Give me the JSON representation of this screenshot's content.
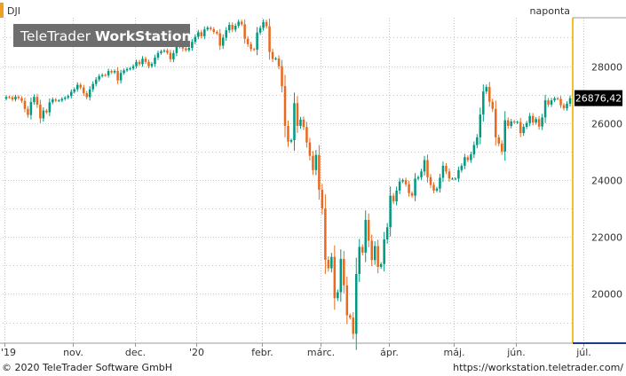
{
  "symbol": "DJI",
  "period_label": "naponta",
  "watermark": {
    "brand": "TeleTrader ",
    "product": "WorkStation"
  },
  "last_price_label": "26876,42",
  "footer": {
    "copyright": "© 2020 TeleTrader Software GmbH",
    "url": "https://workstation.teletrader.com/"
  },
  "colors": {
    "up": "#009a82",
    "down": "#e86a1e",
    "grid": "#c8c8c8",
    "last_box": "#000000",
    "accent_right": "#f0c030",
    "accent_bottom": "#1a3a8a",
    "symbol_bar": "#f0a020",
    "period_text": "#009a82"
  },
  "chart_data": {
    "type": "candlestick",
    "title": "DJI",
    "frequency": "naponta",
    "y_ticks": [
      {
        "v": 20000,
        "l": "20000"
      },
      {
        "v": 22000,
        "l": "22000"
      },
      {
        "v": 24000,
        "l": "24000"
      },
      {
        "v": 26000,
        "l": "26000"
      },
      {
        "v": 28000,
        "l": "28000"
      }
    ],
    "ylim": [
      18270,
      29700
    ],
    "x_ticks": [
      {
        "i": 0,
        "l": "'19"
      },
      {
        "i": 22,
        "l": "nov."
      },
      {
        "i": 42,
        "l": "dec."
      },
      {
        "i": 62,
        "l": "'20"
      },
      {
        "i": 83,
        "l": "febr."
      },
      {
        "i": 102,
        "l": "márc."
      },
      {
        "i": 124,
        "l": "ápr."
      },
      {
        "i": 145,
        "l": "máj."
      },
      {
        "i": 165,
        "l": "jún."
      },
      {
        "i": 187,
        "l": "júl."
      }
    ],
    "last_value": 26876.42,
    "series": [
      {
        "name": "DJI",
        "closes": [
          26916,
          26907,
          26830,
          26925,
          26875,
          26778,
          26500,
          26285,
          26740,
          26920,
          26650,
          26165,
          26440,
          26378,
          26730,
          26830,
          26790,
          26795,
          26850,
          26895,
          26950,
          27100,
          27185,
          27345,
          27250,
          27050,
          26910,
          27185,
          27375,
          27530,
          27650,
          27690,
          27680,
          27830,
          27780,
          27830,
          27500,
          27760,
          27850,
          27900,
          27920,
          28000,
          28150,
          28070,
          28260,
          28150,
          28000,
          28080,
          28300,
          28460,
          28520,
          28550,
          28470,
          28240,
          28460,
          28710,
          28870,
          28620,
          28560,
          28640,
          28855,
          29030,
          29190,
          29050,
          29290,
          29350,
          29300,
          29200,
          29150,
          28720,
          29000,
          29260,
          29450,
          29280,
          29420,
          29560,
          29470,
          28960,
          28770,
          28600,
          28580,
          29180,
          29340,
          29550,
          29400,
          28500,
          28250,
          28270,
          28000,
          27300,
          25900,
          25350,
          25400,
          26700,
          25900,
          26120,
          25860,
          25320,
          24850,
          24350,
          24880,
          23660,
          23000,
          21200,
          20900,
          21300,
          19850,
          20060,
          21230,
          20300,
          19250,
          19170,
          18600,
          20700,
          21650,
          21450,
          22600,
          21870,
          21190,
          21680,
          20950,
          21050,
          21915,
          22340,
          23450,
          23250,
          23630,
          23950,
          24000,
          23850,
          23540,
          23450,
          24050,
          24100,
          24300,
          24700,
          24100,
          23830,
          23630,
          23700,
          24080,
          24500,
          24300,
          24050,
          24050,
          24050,
          24350,
          24500,
          24800,
          24700,
          24900,
          25230,
          25500,
          26300,
          27110,
          27270,
          26750,
          26500,
          25500,
          25280,
          25000,
          26100,
          25900,
          26060,
          26020,
          26040,
          25650,
          25870,
          26000,
          26250,
          26020,
          26140,
          25880,
          26200,
          26800,
          26650,
          26800,
          26870,
          26850,
          26630,
          26520,
          26680,
          26876
        ]
      }
    ]
  }
}
